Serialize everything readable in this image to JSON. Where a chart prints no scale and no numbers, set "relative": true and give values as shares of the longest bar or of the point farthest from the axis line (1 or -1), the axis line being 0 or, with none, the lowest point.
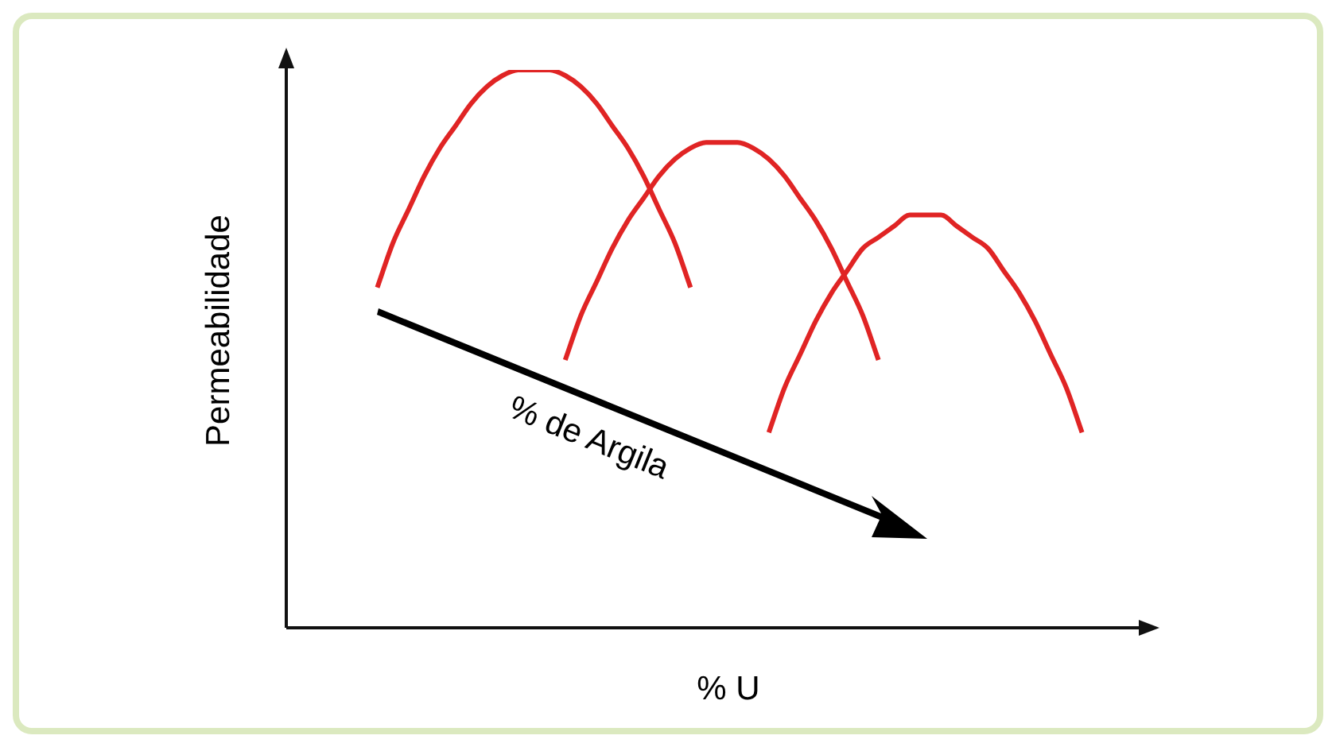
{
  "chart_data": {
    "type": "line",
    "relative": true,
    "xlabel": "% U",
    "ylabel": "Permeabilidade",
    "annotations": [
      "% de Argila"
    ],
    "legend": false,
    "marker": "none",
    "line_style": "solid",
    "categories": [
      null,
      null,
      null,
      null,
      null,
      null,
      null,
      null,
      null,
      null,
      null,
      null,
      null,
      null,
      null,
      null,
      null,
      null,
      null,
      null,
      null,
      null,
      null,
      null,
      null,
      null,
      null,
      null,
      null,
      null,
      null,
      null,
      null,
      null,
      null,
      null,
      null,
      null,
      null,
      null,
      null,
      null,
      null,
      null,
      null,
      null,
      null,
      null,
      null,
      null,
      null,
      null,
      null
    ],
    "series": [
      {
        "color": "#e02424",
        "values": [
          null,
          null,
          null,
          null,
          null,
          0.61,
          0.69,
          0.75,
          0.81,
          0.86,
          0.9,
          0.94,
          0.97,
          0.99,
          1,
          1,
          1,
          0.99,
          0.97,
          0.94,
          0.9,
          0.86,
          0.81,
          0.75,
          0.69,
          0.61,
          null,
          null,
          null,
          null,
          null,
          null,
          null,
          null,
          null,
          null,
          null,
          null,
          null,
          null,
          null,
          null,
          null,
          null,
          null,
          null,
          null,
          null,
          null,
          null,
          null,
          null,
          null
        ]
      },
      {
        "color": "#e02424",
        "values": [
          null,
          null,
          null,
          null,
          null,
          null,
          null,
          null,
          null,
          null,
          null,
          null,
          null,
          null,
          null,
          null,
          null,
          0.48,
          0.56,
          0.62,
          0.68,
          0.73,
          0.77,
          0.81,
          0.84,
          0.86,
          0.87,
          0.87,
          0.87,
          0.86,
          0.84,
          0.81,
          0.77,
          0.73,
          0.68,
          0.62,
          0.56,
          0.48,
          null,
          null,
          null,
          null,
          null,
          null,
          null,
          null,
          null,
          null,
          null,
          null,
          null,
          null,
          null
        ]
      },
      {
        "color": "#e02424",
        "values": [
          null,
          null,
          null,
          null,
          null,
          null,
          null,
          null,
          null,
          null,
          null,
          null,
          null,
          null,
          null,
          null,
          null,
          null,
          null,
          null,
          null,
          null,
          null,
          null,
          null,
          null,
          null,
          null,
          null,
          null,
          0.35,
          0.43,
          0.49,
          0.55,
          0.6,
          0.64,
          0.68,
          0.7,
          0.72,
          0.74,
          0.74,
          0.74,
          0.72,
          0.7,
          0.68,
          0.64,
          0.6,
          0.55,
          0.49,
          0.43,
          0.35,
          null,
          null
        ]
      }
    ]
  }
}
